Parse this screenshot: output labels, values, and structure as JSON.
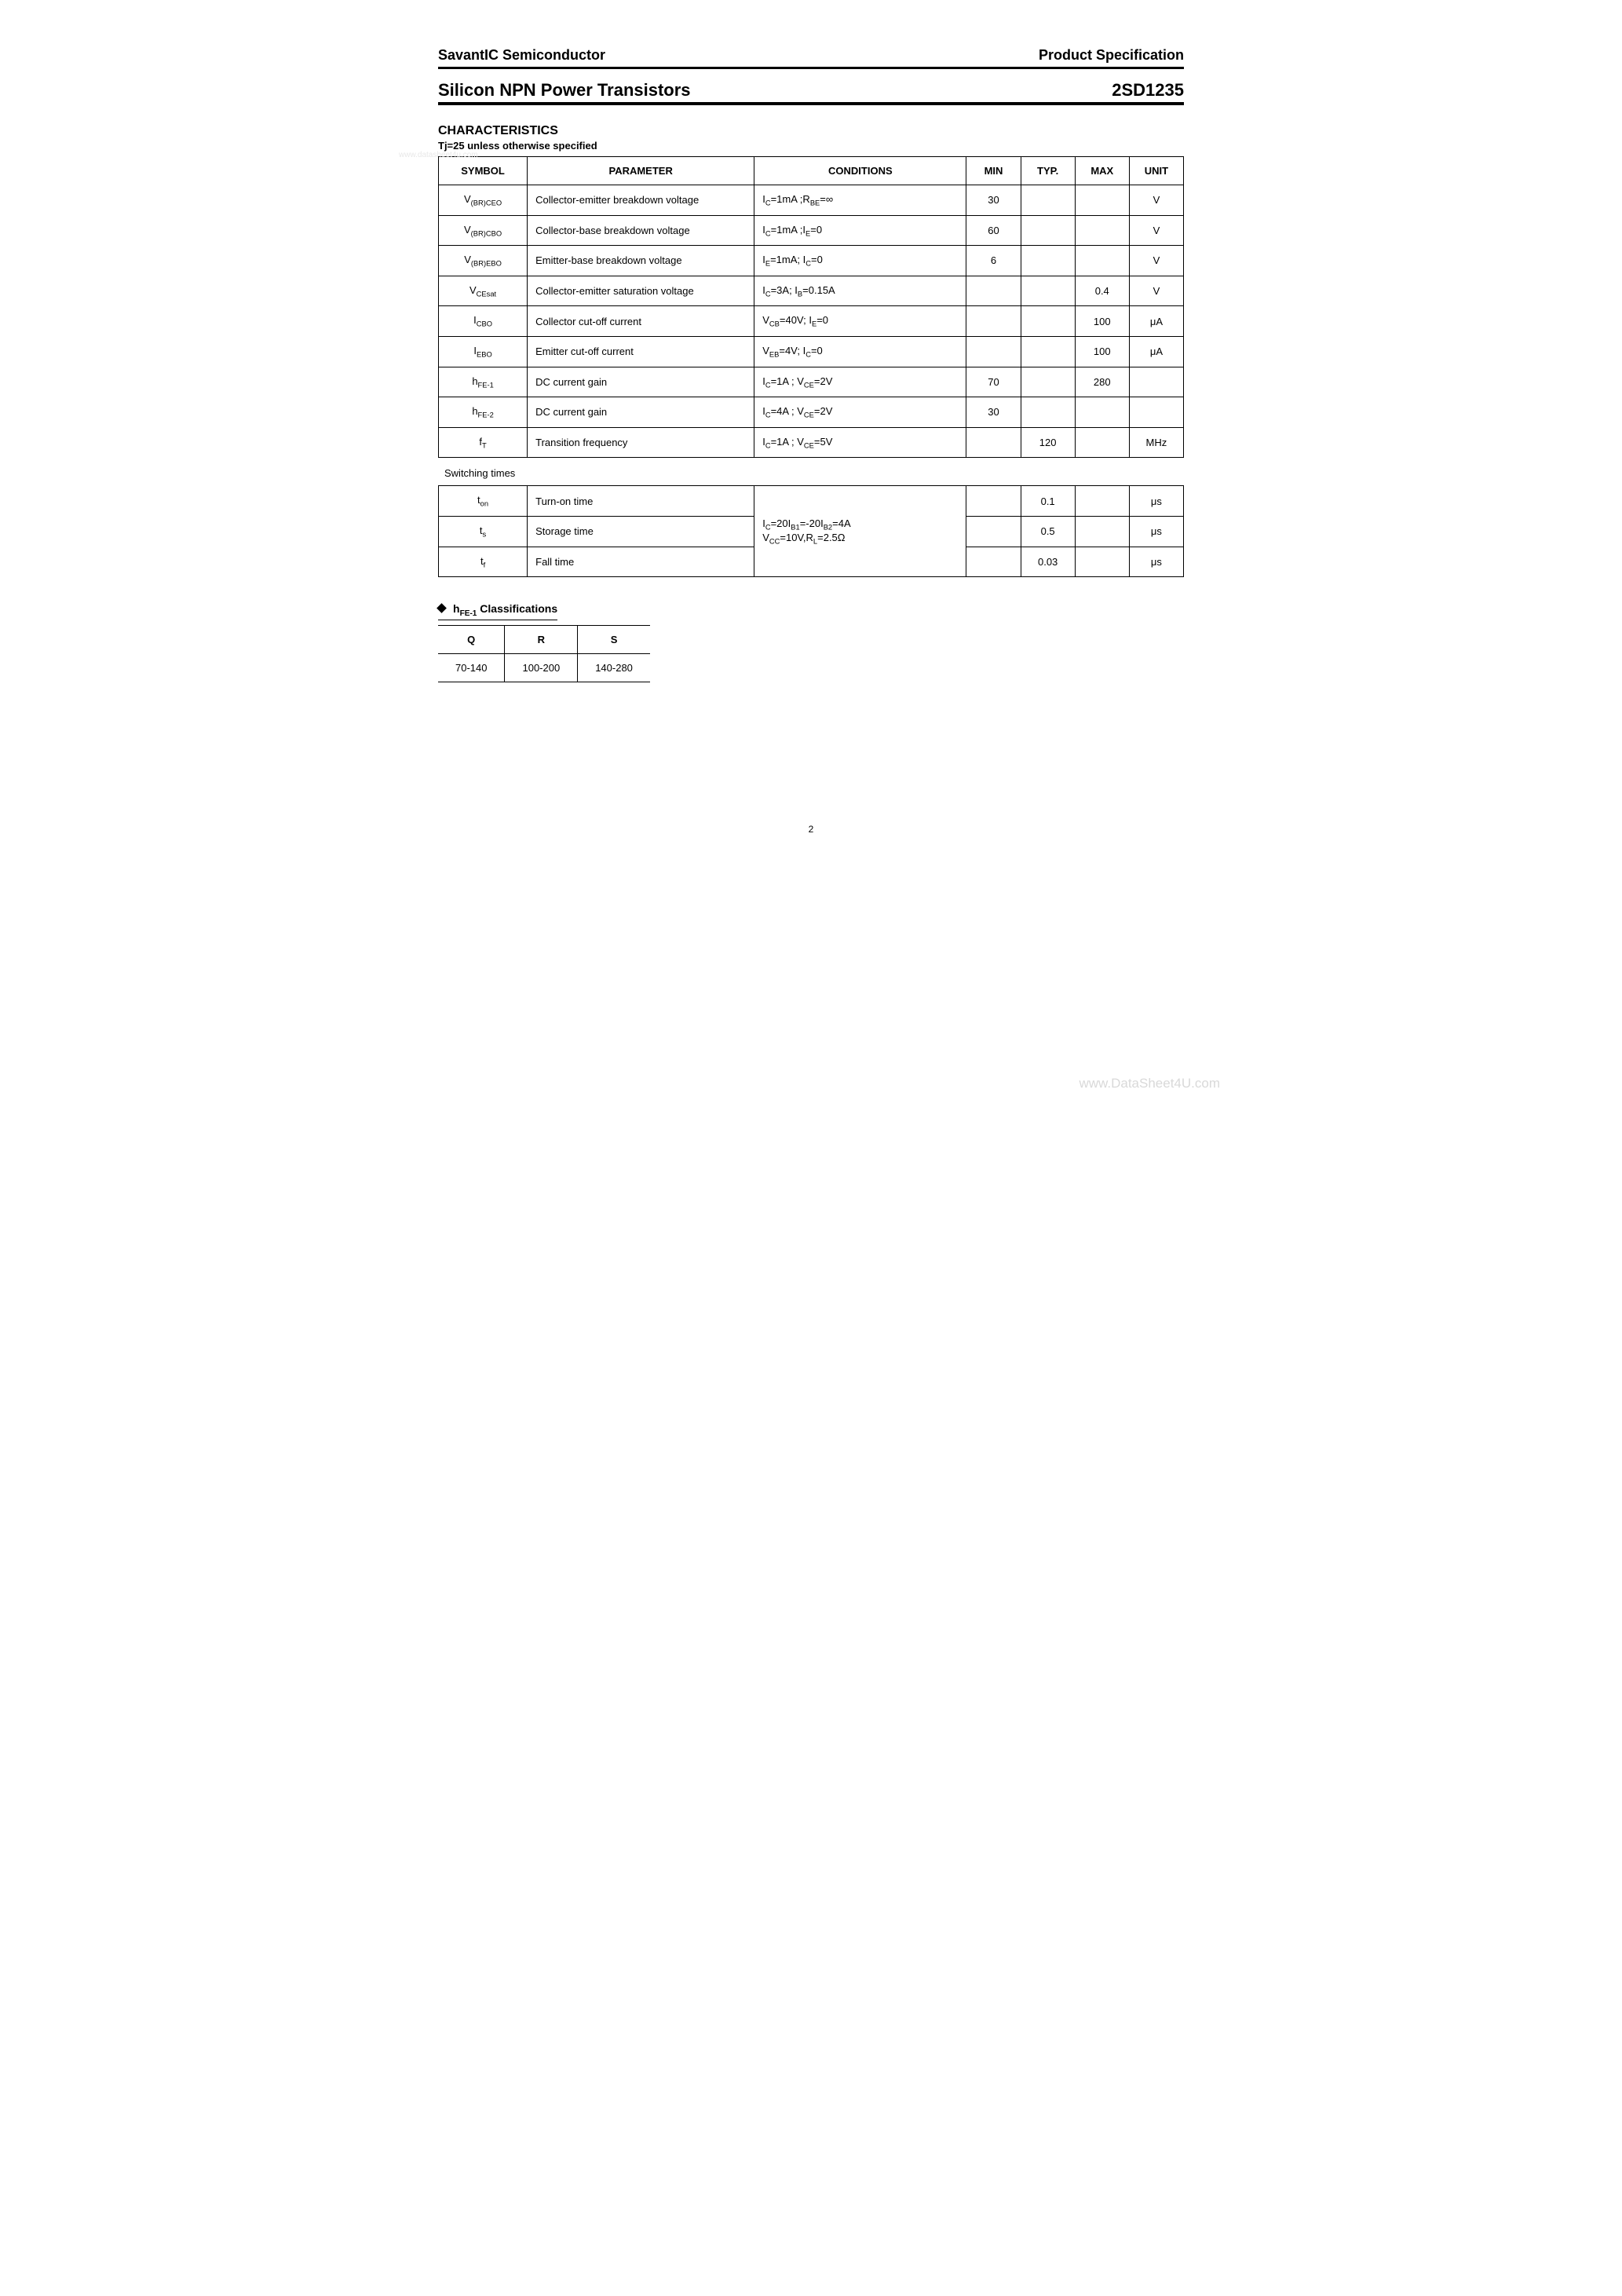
{
  "watermark_top": "www.datasheet4u.com",
  "watermark_bottom": "www.DataSheet4U.com",
  "header": {
    "left": "SavantIC Semiconductor",
    "right": "Product Specification"
  },
  "title": {
    "left": "Silicon NPN Power Transistors",
    "right": "2SD1235"
  },
  "section_heading": "CHARACTERISTICS",
  "subheading": "Tj=25    unless otherwise specified",
  "table_headers": {
    "symbol": "SYMBOL",
    "parameter": "PARAMETER",
    "conditions": "CONDITIONS",
    "min": "MIN",
    "typ": "TYP.",
    "max": "MAX",
    "unit": "UNIT"
  },
  "rows": [
    {
      "sym_html": "V<sub>(BR)CEO</sub>",
      "param": "Collector-emitter breakdown voltage",
      "cond_html": "I<sub>C</sub>=1mA ;R<sub>BE</sub>=∞",
      "min": "30",
      "typ": "",
      "max": "",
      "unit": "V"
    },
    {
      "sym_html": "V<sub>(BR)CBO</sub>",
      "param": "Collector-base breakdown voltage",
      "cond_html": "I<sub>C</sub>=1mA ;I<sub>E</sub>=0",
      "min": "60",
      "typ": "",
      "max": "",
      "unit": "V"
    },
    {
      "sym_html": "V<sub>(BR)EBO</sub>",
      "param": "Emitter-base breakdown voltage",
      "cond_html": "I<sub>E</sub>=1mA; I<sub>C</sub>=0",
      "min": "6",
      "typ": "",
      "max": "",
      "unit": "V"
    },
    {
      "sym_html": "V<sub>CEsat</sub>",
      "param": "Collector-emitter saturation voltage",
      "cond_html": "I<sub>C</sub>=3A; I<sub>B</sub>=0.15A",
      "min": "",
      "typ": "",
      "max": "0.4",
      "unit": "V"
    },
    {
      "sym_html": "I<sub>CBO</sub>",
      "param": "Collector cut-off current",
      "cond_html": "V<sub>CB</sub>=40V; I<sub>E</sub>=0",
      "min": "",
      "typ": "",
      "max": "100",
      "unit": "μA"
    },
    {
      "sym_html": "I<sub>EBO</sub>",
      "param": "Emitter cut-off current",
      "cond_html": "V<sub>EB</sub>=4V; I<sub>C</sub>=0",
      "min": "",
      "typ": "",
      "max": "100",
      "unit": "μA"
    },
    {
      "sym_html": "h<sub>FE-1</sub>",
      "param": "DC current gain",
      "cond_html": "I<sub>C</sub>=1A ; V<sub>CE</sub>=2V",
      "min": "70",
      "typ": "",
      "max": "280",
      "unit": ""
    },
    {
      "sym_html": "h<sub>FE-2</sub>",
      "param": "DC current gain",
      "cond_html": "I<sub>C</sub>=4A ; V<sub>CE</sub>=2V",
      "min": "30",
      "typ": "",
      "max": "",
      "unit": ""
    },
    {
      "sym_html": "f<sub>T</sub>",
      "param": "Transition frequency",
      "cond_html": "I<sub>C</sub>=1A ; V<sub>CE</sub>=5V",
      "min": "",
      "typ": "120",
      "max": "",
      "unit": "MHz"
    }
  ],
  "switching_label": "Switching times",
  "switching_cond_html": "I<sub>C</sub>=20I<sub>B1</sub>=-20I<sub>B2</sub>=4A<br>V<sub>CC</sub>=10V,R<sub>L</sub>=2.5Ω",
  "switching_rows": [
    {
      "sym_html": "t<sub>on</sub>",
      "param": "Turn-on time",
      "min": "",
      "typ": "0.1",
      "max": "",
      "unit": "μs"
    },
    {
      "sym_html": "t<sub>s</sub>",
      "param": "Storage time",
      "min": "",
      "typ": "0.5",
      "max": "",
      "unit": "μs"
    },
    {
      "sym_html": "t<sub>f</sub>",
      "param": "Fall time",
      "min": "",
      "typ": "0.03",
      "max": "",
      "unit": "μs"
    }
  ],
  "cls_heading_html": "h<sub>FE-1</sub> Classifications",
  "cls_headers": [
    "Q",
    "R",
    "S"
  ],
  "cls_values": [
    "70-140",
    "100-200",
    "140-280"
  ],
  "page_number": "2"
}
